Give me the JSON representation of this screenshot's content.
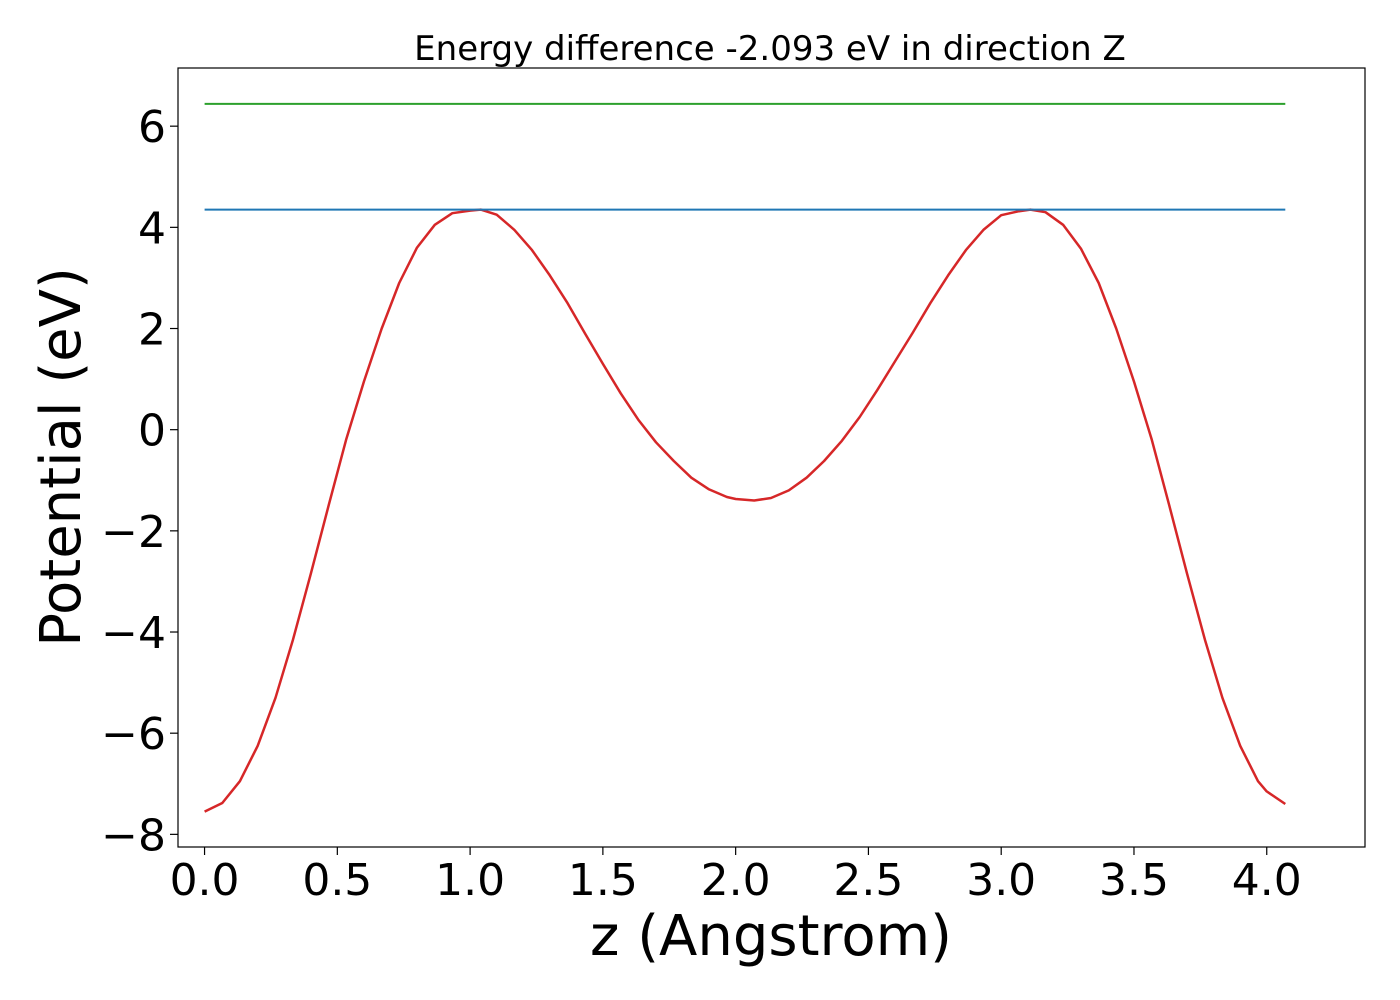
{
  "chart_data": {
    "type": "line",
    "title": "Energy difference -2.093 eV in direction Z",
    "xlabel": "z (Angstrom)",
    "ylabel": "Potential (eV)",
    "xlim": [
      -0.1,
      4.37
    ],
    "ylim": [
      -8.25,
      7.15
    ],
    "xticks": [
      0.0,
      0.5,
      1.0,
      1.5,
      2.0,
      2.5,
      3.0,
      3.5,
      4.0
    ],
    "xtick_labels": [
      "0.0",
      "0.5",
      "1.0",
      "1.5",
      "2.0",
      "2.5",
      "3.0",
      "3.5",
      "4.0"
    ],
    "yticks": [
      6,
      4,
      2,
      0,
      -2,
      -4,
      -6,
      -8
    ],
    "ytick_labels": [
      "6",
      "4",
      "2",
      "0",
      "−2",
      "−4",
      "−6",
      "−8"
    ],
    "grid": false,
    "series": [
      {
        "color": "#d62728",
        "x": [
          0.0,
          0.067,
          0.133,
          0.2,
          0.267,
          0.333,
          0.4,
          0.467,
          0.533,
          0.6,
          0.667,
          0.733,
          0.8,
          0.867,
          0.933,
          1.0,
          1.04,
          1.1,
          1.167,
          1.233,
          1.3,
          1.367,
          1.433,
          1.5,
          1.567,
          1.633,
          1.7,
          1.767,
          1.833,
          1.9,
          1.967,
          2.0,
          2.07,
          2.133,
          2.2,
          2.267,
          2.333,
          2.4,
          2.467,
          2.533,
          2.6,
          2.667,
          2.733,
          2.8,
          2.867,
          2.933,
          3.0,
          3.067,
          3.11,
          3.167,
          3.233,
          3.3,
          3.367,
          3.433,
          3.5,
          3.567,
          3.633,
          3.7,
          3.767,
          3.833,
          3.9,
          3.967,
          4.0,
          4.07
        ],
        "y": [
          -7.55,
          -7.38,
          -6.95,
          -6.25,
          -5.3,
          -4.15,
          -2.85,
          -1.5,
          -0.2,
          0.95,
          2.0,
          2.9,
          3.6,
          4.05,
          4.28,
          4.33,
          4.35,
          4.25,
          3.95,
          3.55,
          3.05,
          2.5,
          1.9,
          1.3,
          0.72,
          0.2,
          -0.25,
          -0.62,
          -0.95,
          -1.18,
          -1.33,
          -1.37,
          -1.4,
          -1.35,
          -1.2,
          -0.95,
          -0.62,
          -0.22,
          0.25,
          0.78,
          1.35,
          1.92,
          2.5,
          3.05,
          3.55,
          3.95,
          4.24,
          4.32,
          4.35,
          4.3,
          4.05,
          3.58,
          2.9,
          2.0,
          0.95,
          -0.2,
          -1.5,
          -2.85,
          -4.15,
          -5.3,
          -6.25,
          -6.95,
          -7.15,
          -7.4
        ]
      },
      {
        "color": "#1f77b4",
        "x": [
          0.0,
          4.07
        ],
        "y": [
          4.35,
          4.35
        ]
      },
      {
        "color": "#2ca02c",
        "x": [
          0.0,
          4.07
        ],
        "y": [
          6.44,
          6.44
        ]
      }
    ]
  }
}
